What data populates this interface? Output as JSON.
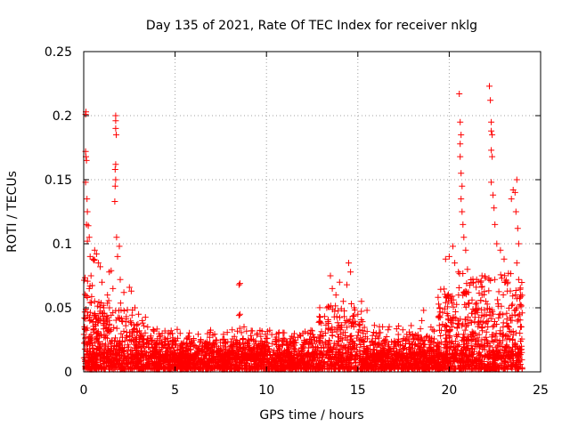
{
  "chart_data": {
    "type": "scatter",
    "title": "Day 135 of 2021, Rate Of TEC Index for receiver nklg",
    "xlabel": "GPS time / hours",
    "ylabel": "ROTI / TECUs",
    "xlim": [
      0,
      25
    ],
    "ylim": [
      0,
      0.25
    ],
    "x_ticks": [
      "0",
      "5",
      "10",
      "15",
      "20",
      "25"
    ],
    "y_ticks": [
      "0",
      "0.05",
      "0.1",
      "0.15",
      "0.2",
      "0.25"
    ],
    "grid": true,
    "marker": "+",
    "color": "#ff0000",
    "series": [
      {
        "points": [
          [
            0.1,
            0.201
          ],
          [
            0.12,
            0.203
          ],
          [
            0.1,
            0.172
          ],
          [
            0.12,
            0.168
          ],
          [
            0.15,
            0.165
          ],
          [
            0.1,
            0.148
          ],
          [
            0.18,
            0.135
          ],
          [
            0.2,
            0.125
          ],
          [
            0.15,
            0.115
          ],
          [
            0.25,
            0.114
          ],
          [
            0.3,
            0.105
          ],
          [
            0.2,
            0.102
          ],
          [
            0.35,
            0.09
          ],
          [
            0.5,
            0.088
          ],
          [
            0.6,
            0.095
          ],
          [
            0.7,
            0.092
          ],
          [
            0.8,
            0.085
          ],
          [
            0.4,
            0.075
          ],
          [
            0.9,
            0.082
          ],
          [
            0.3,
            0.065
          ],
          [
            1.0,
            0.07
          ],
          [
            0.2,
            0.058
          ],
          [
            0.6,
            0.055
          ],
          [
            1.1,
            0.05
          ],
          [
            1.3,
            0.06
          ],
          [
            1.4,
            0.078
          ],
          [
            1.5,
            0.079
          ],
          [
            1.6,
            0.065
          ],
          [
            1.75,
            0.2
          ],
          [
            1.75,
            0.196
          ],
          [
            1.75,
            0.19
          ],
          [
            1.78,
            0.185
          ],
          [
            1.75,
            0.162
          ],
          [
            1.72,
            0.158
          ],
          [
            1.75,
            0.15
          ],
          [
            1.72,
            0.145
          ],
          [
            1.7,
            0.133
          ],
          [
            1.8,
            0.105
          ],
          [
            1.95,
            0.098
          ],
          [
            1.85,
            0.09
          ],
          [
            2.0,
            0.072
          ],
          [
            2.2,
            0.062
          ],
          [
            2.5,
            0.066
          ],
          [
            2.6,
            0.063
          ],
          [
            2.8,
            0.05
          ],
          [
            3.0,
            0.045
          ],
          [
            3.2,
            0.04
          ],
          [
            3.5,
            0.035
          ],
          [
            3.8,
            0.033
          ],
          [
            4.2,
            0.028
          ],
          [
            4.6,
            0.026
          ],
          [
            5.0,
            0.024
          ],
          [
            5.4,
            0.022
          ],
          [
            6.0,
            0.02
          ],
          [
            6.5,
            0.02
          ],
          [
            7.0,
            0.019
          ],
          [
            7.5,
            0.018
          ],
          [
            8.0,
            0.02
          ],
          [
            8.55,
            0.069
          ],
          [
            8.5,
            0.068
          ],
          [
            8.5,
            0.044
          ],
          [
            8.55,
            0.045
          ],
          [
            9.0,
            0.025
          ],
          [
            9.5,
            0.03
          ],
          [
            10.0,
            0.026
          ],
          [
            10.5,
            0.024
          ],
          [
            11.0,
            0.025
          ],
          [
            11.5,
            0.027
          ],
          [
            12.0,
            0.03
          ],
          [
            12.5,
            0.032
          ],
          [
            13.0,
            0.038
          ],
          [
            13.3,
            0.05
          ],
          [
            13.5,
            0.075
          ],
          [
            13.6,
            0.065
          ],
          [
            13.8,
            0.06
          ],
          [
            14.0,
            0.07
          ],
          [
            14.2,
            0.055
          ],
          [
            14.4,
            0.068
          ],
          [
            14.5,
            0.085
          ],
          [
            14.6,
            0.078
          ],
          [
            14.8,
            0.05
          ],
          [
            15.0,
            0.045
          ],
          [
            15.2,
            0.055
          ],
          [
            15.5,
            0.048
          ],
          [
            16.0,
            0.03
          ],
          [
            16.5,
            0.025
          ],
          [
            17.0,
            0.024
          ],
          [
            17.5,
            0.026
          ],
          [
            18.0,
            0.028
          ],
          [
            18.5,
            0.04
          ],
          [
            18.6,
            0.048
          ],
          [
            19.0,
            0.035
          ],
          [
            19.5,
            0.05
          ],
          [
            19.8,
            0.088
          ],
          [
            20.0,
            0.09
          ],
          [
            20.2,
            0.098
          ],
          [
            20.3,
            0.085
          ],
          [
            20.5,
            0.078
          ],
          [
            20.55,
            0.217
          ],
          [
            20.6,
            0.195
          ],
          [
            20.65,
            0.185
          ],
          [
            20.6,
            0.178
          ],
          [
            20.6,
            0.168
          ],
          [
            20.65,
            0.155
          ],
          [
            20.7,
            0.145
          ],
          [
            20.65,
            0.135
          ],
          [
            20.7,
            0.125
          ],
          [
            20.75,
            0.115
          ],
          [
            20.8,
            0.105
          ],
          [
            20.9,
            0.095
          ],
          [
            21.0,
            0.08
          ],
          [
            21.3,
            0.07
          ],
          [
            21.5,
            0.072
          ],
          [
            21.8,
            0.06
          ],
          [
            22.0,
            0.055
          ],
          [
            22.2,
            0.223
          ],
          [
            22.25,
            0.212
          ],
          [
            22.3,
            0.195
          ],
          [
            22.3,
            0.188
          ],
          [
            22.35,
            0.185
          ],
          [
            22.3,
            0.173
          ],
          [
            22.35,
            0.168
          ],
          [
            22.3,
            0.148
          ],
          [
            22.4,
            0.138
          ],
          [
            22.45,
            0.128
          ],
          [
            22.5,
            0.115
          ],
          [
            22.6,
            0.1
          ],
          [
            22.8,
            0.095
          ],
          [
            23.0,
            0.088
          ],
          [
            23.2,
            0.07
          ],
          [
            23.4,
            0.135
          ],
          [
            23.5,
            0.142
          ],
          [
            23.6,
            0.14
          ],
          [
            23.7,
            0.15
          ],
          [
            23.65,
            0.125
          ],
          [
            23.75,
            0.112
          ],
          [
            23.8,
            0.1
          ],
          [
            23.7,
            0.085
          ],
          [
            23.8,
            0.072
          ],
          [
            23.9,
            0.06
          ],
          [
            23.85,
            0.045
          ],
          [
            23.9,
            0.035
          ],
          [
            23.95,
            0.02
          ]
        ]
      }
    ]
  }
}
